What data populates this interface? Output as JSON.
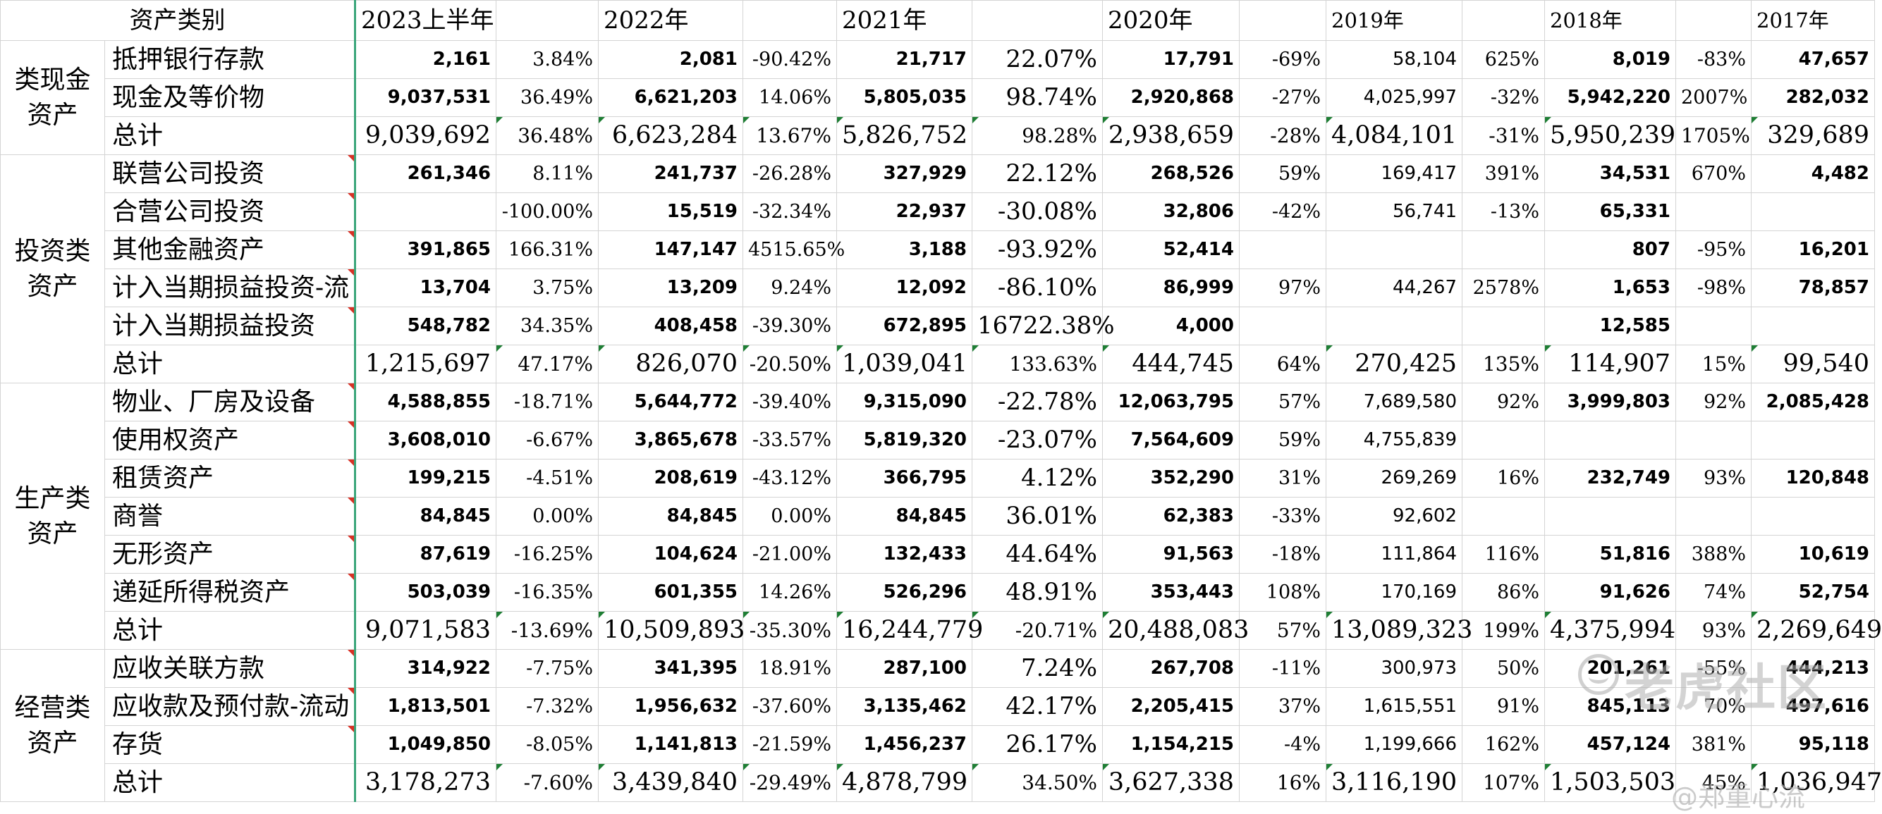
{
  "headers": [
    "资产类别",
    "2023上半年",
    "",
    "2022年",
    "",
    "2021年",
    "",
    "2020年",
    "",
    "2019年",
    "",
    "2018年",
    "",
    "2017年"
  ],
  "groups": [
    {
      "label": "类现金资产",
      "rows": [
        {
          "name": "抵押银行存款",
          "cells": [
            "2,161",
            "3.84%",
            "2,081",
            "-90.42%",
            "21,717",
            "22.07%",
            "17,791",
            "-69%",
            "58,104",
            "625%",
            "8,019",
            "-83%",
            "47,657"
          ]
        },
        {
          "name": "现金及等价物",
          "cells": [
            "9,037,531",
            "36.49%",
            "6,621,203",
            "14.06%",
            "5,805,035",
            "98.74%",
            "2,920,868",
            "-27%",
            "4,025,997",
            "-32%",
            "5,942,220",
            "2007%",
            "282,032"
          ]
        },
        {
          "name": "总计",
          "cells": [
            "9,039,692",
            "36.48%",
            "6,623,284",
            "13.67%",
            "5,826,752",
            "98.28%",
            "2,938,659",
            "-28%",
            "4,084,101",
            "-31%",
            "5,950,239",
            "1705%",
            "329,689"
          ],
          "total": true
        }
      ]
    },
    {
      "label": "投资类资产",
      "rows": [
        {
          "name": "联营公司投资",
          "cells": [
            "261,346",
            "8.11%",
            "241,737",
            "-26.28%",
            "327,929",
            "22.12%",
            "268,526",
            "59%",
            "169,417",
            "391%",
            "34,531",
            "670%",
            "4,482"
          ]
        },
        {
          "name": "合营公司投资",
          "cells": [
            "",
            "-100.00%",
            "15,519",
            "-32.34%",
            "22,937",
            "-30.08%",
            "32,806",
            "-42%",
            "56,741",
            "-13%",
            "65,331",
            "",
            ""
          ]
        },
        {
          "name": "其他金融资产",
          "cells": [
            "391,865",
            "166.31%",
            "147,147",
            "4515.65%",
            "3,188",
            "-93.92%",
            "52,414",
            "",
            "",
            "",
            "807",
            "-95%",
            "16,201"
          ]
        },
        {
          "name": "计入当期损益投资-流",
          "cells": [
            "13,704",
            "3.75%",
            "13,209",
            "9.24%",
            "12,092",
            "-86.10%",
            "86,999",
            "97%",
            "44,267",
            "2578%",
            "1,653",
            "-98%",
            "78,857"
          ]
        },
        {
          "name": "计入当期损益投资",
          "cells": [
            "548,782",
            "34.35%",
            "408,458",
            "-39.30%",
            "672,895",
            "16722.38%",
            "4,000",
            "",
            "",
            "",
            "12,585",
            "",
            ""
          ]
        },
        {
          "name": "总计",
          "cells": [
            "1,215,697",
            "47.17%",
            "826,070",
            "-20.50%",
            "1,039,041",
            "133.63%",
            "444,745",
            "64%",
            "270,425",
            "135%",
            "114,907",
            "15%",
            "99,540"
          ],
          "total": true
        }
      ]
    },
    {
      "label": "生产类资产",
      "rows": [
        {
          "name": "物业、厂房及设备",
          "cells": [
            "4,588,855",
            "-18.71%",
            "5,644,772",
            "-39.40%",
            "9,315,090",
            "-22.78%",
            "12,063,795",
            "57%",
            "7,689,580",
            "92%",
            "3,999,803",
            "92%",
            "2,085,428"
          ]
        },
        {
          "name": "使用权资产",
          "cells": [
            "3,608,010",
            "-6.67%",
            "3,865,678",
            "-33.57%",
            "5,819,320",
            "-23.07%",
            "7,564,609",
            "59%",
            "4,755,839",
            "",
            "",
            "",
            ""
          ]
        },
        {
          "name": "租赁资产",
          "cells": [
            "199,215",
            "-4.51%",
            "208,619",
            "-43.12%",
            "366,795",
            "4.12%",
            "352,290",
            "31%",
            "269,269",
            "16%",
            "232,749",
            "93%",
            "120,848"
          ]
        },
        {
          "name": "商誉",
          "cells": [
            "84,845",
            "0.00%",
            "84,845",
            "0.00%",
            "84,845",
            "36.01%",
            "62,383",
            "-33%",
            "92,602",
            "",
            "",
            "",
            ""
          ]
        },
        {
          "name": "无形资产",
          "cells": [
            "87,619",
            "-16.25%",
            "104,624",
            "-21.00%",
            "132,433",
            "44.64%",
            "91,563",
            "-18%",
            "111,864",
            "116%",
            "51,816",
            "388%",
            "10,619"
          ]
        },
        {
          "name": "递延所得税资产",
          "cells": [
            "503,039",
            "-16.35%",
            "601,355",
            "14.26%",
            "526,296",
            "48.91%",
            "353,443",
            "108%",
            "170,169",
            "86%",
            "91,626",
            "74%",
            "52,754"
          ]
        },
        {
          "name": "总计",
          "cells": [
            "9,071,583",
            "-13.69%",
            "10,509,893",
            "-35.30%",
            "16,244,779",
            "-20.71%",
            "20,488,083",
            "57%",
            "13,089,323",
            "199%",
            "4,375,994",
            "93%",
            "2,269,649"
          ],
          "total": true
        }
      ]
    },
    {
      "label": "经营类资产",
      "rows": [
        {
          "name": "应收关联方款",
          "cells": [
            "314,922",
            "-7.75%",
            "341,395",
            "18.91%",
            "287,100",
            "7.24%",
            "267,708",
            "-11%",
            "300,973",
            "50%",
            "201,261",
            "-55%",
            "444,213"
          ]
        },
        {
          "name": "应收款及预付款-流动",
          "cells": [
            "1,813,501",
            "-7.32%",
            "1,956,632",
            "-37.60%",
            "3,135,462",
            "42.17%",
            "2,205,415",
            "37%",
            "1,615,551",
            "91%",
            "845,113",
            "70%",
            "497,616"
          ]
        },
        {
          "name": "存货",
          "cells": [
            "1,049,850",
            "-8.05%",
            "1,141,813",
            "-21.59%",
            "1,456,237",
            "26.17%",
            "1,154,215",
            "-4%",
            "1,199,666",
            "162%",
            "457,124",
            "381%",
            "95,118"
          ]
        },
        {
          "name": "总计",
          "cells": [
            "3,178,273",
            "-7.60%",
            "3,439,840",
            "-29.49%",
            "4,878,799",
            "34.50%",
            "3,627,338",
            "16%",
            "3,116,190",
            "107%",
            "1,503,503",
            "45%",
            "1,036,947"
          ],
          "total": true
        }
      ]
    }
  ],
  "watermark": {
    "brand": "老虎社区",
    "user": "@郑重心流"
  }
}
